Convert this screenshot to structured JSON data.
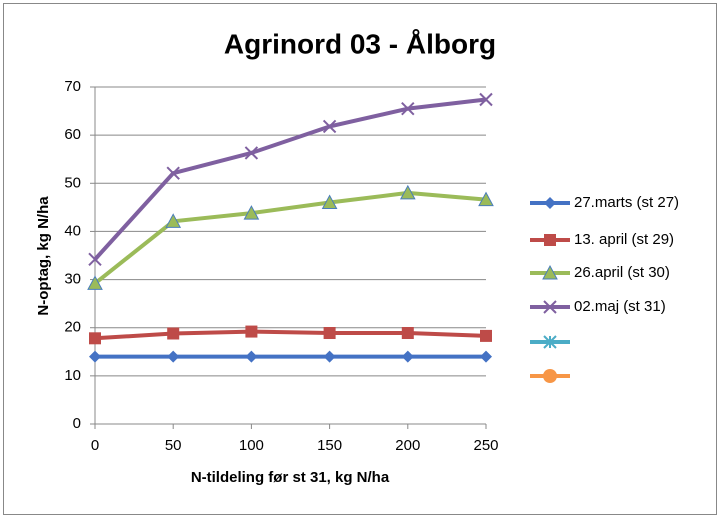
{
  "chart_data": {
    "type": "line",
    "title": "Agrinord 03 - Ålborg",
    "xlabel": "N-tildeling før st 31, kg N/ha",
    "ylabel": "N-optag, kg N/ha",
    "x": [
      0,
      50,
      100,
      150,
      200,
      250
    ],
    "xlim": [
      0,
      250
    ],
    "xticks": [
      0,
      50,
      100,
      150,
      200,
      250
    ],
    "ylim": [
      0,
      70
    ],
    "yticks": [
      0,
      10,
      20,
      30,
      40,
      50,
      60,
      70
    ],
    "grid": true,
    "legend": "right",
    "series": [
      {
        "name": "27.marts (st 27)",
        "color": "#4472c4",
        "marker": "diamond",
        "values": [
          14,
          14,
          14,
          14,
          14,
          14
        ]
      },
      {
        "name": "13. april (st 29)",
        "color": "#be4b48",
        "marker": "square",
        "values": [
          17.8,
          18.8,
          19.2,
          18.9,
          18.9,
          18.3
        ]
      },
      {
        "name": "26.april (st 30)",
        "color": "#9bbb59",
        "marker": "triangle",
        "values": [
          29.2,
          42.1,
          43.8,
          46.0,
          48.0,
          46.6
        ]
      },
      {
        "name": "02.maj (st 31)",
        "color": "#7f60a0",
        "marker": "x",
        "values": [
          34.2,
          52.1,
          56.3,
          61.8,
          65.5,
          67.4
        ]
      },
      {
        "name": null,
        "color": "#4bacc6",
        "marker": "star",
        "values": [
          null,
          null,
          null,
          null,
          null,
          null
        ]
      },
      {
        "name": null,
        "color": "#f79646",
        "marker": "circle",
        "values": [
          null,
          null,
          null,
          null,
          null,
          null
        ]
      }
    ]
  }
}
